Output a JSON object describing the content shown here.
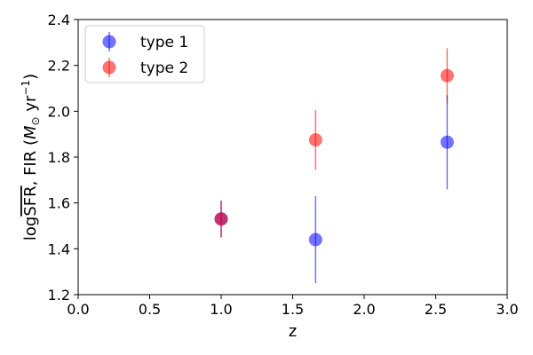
{
  "chart_data": {
    "type": "scatter",
    "title": "",
    "xlabel": "z",
    "ylabel": "logSFR, FIR (M⊙ yr−1)",
    "ylabel_parts": {
      "log": "log",
      "sfr": "SFR",
      "fir": ", FIR (",
      "m": "M",
      "sun": "⊙",
      "yr": " yr",
      "exp": "−1",
      "close": ")"
    },
    "xlim": [
      0.0,
      3.0
    ],
    "ylim": [
      1.2,
      2.4
    ],
    "xticks": [
      0.0,
      0.5,
      1.0,
      1.5,
      2.0,
      2.5,
      3.0
    ],
    "yticks": [
      1.2,
      1.4,
      1.6,
      1.8,
      2.0,
      2.2,
      2.4
    ],
    "xtick_labels": [
      "0.0",
      "0.5",
      "1.0",
      "1.5",
      "2.0",
      "2.5",
      "3.0"
    ],
    "ytick_labels": [
      "1.2",
      "1.4",
      "1.6",
      "1.8",
      "2.0",
      "2.2",
      "2.4"
    ],
    "grid": false,
    "legend_position": "top-left",
    "series": [
      {
        "name": "type 1",
        "color": "#0000ff",
        "points": [
          {
            "x": 1.0,
            "y": 1.53,
            "err": 0.08
          },
          {
            "x": 1.66,
            "y": 1.44,
            "err": 0.19
          },
          {
            "x": 2.58,
            "y": 1.865,
            "err": 0.205
          }
        ]
      },
      {
        "name": "type 2",
        "color": "#ff0000",
        "points": [
          {
            "x": 1.0,
            "y": 1.53,
            "err": 0.08
          },
          {
            "x": 1.66,
            "y": 1.875,
            "err": 0.13
          },
          {
            "x": 2.58,
            "y": 2.155,
            "err": 0.12
          }
        ]
      }
    ]
  }
}
